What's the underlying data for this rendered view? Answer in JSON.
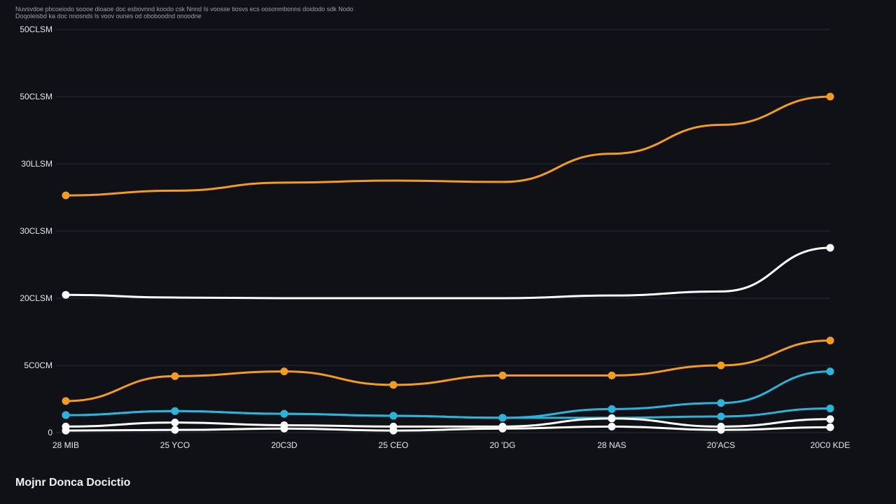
{
  "note": {
    "line1": "Nuvsvdoe pbcoeiodo soooe dioaoe doc esbovnnd koodo csk Nnnd Is voosse tiosvs ecs oosonmbonns doidodo sdk Nodo",
    "line2": "Doqoleisbd ka doc nnosnds ls voov ounes od oboboodnd onoodne"
  },
  "footer": {
    "text": "Mojnr Donca Docictio"
  },
  "colors": {
    "background": "#0f1117",
    "grid": "#262a33",
    "orange": "#f39c1f",
    "cyan": "#2bb3d9",
    "white": "#ffffff"
  },
  "chart_data": {
    "type": "line",
    "title": "",
    "xlabel": "",
    "ylabel": "",
    "y_tick_labels": [
      "0",
      "5C0CM",
      "20CLSM",
      "30CLSM",
      "30LLSM",
      "50CLSM",
      "50CLSM"
    ],
    "ylim": [
      0,
      6
    ],
    "x": [
      "28 MIB",
      "25 YCO",
      "20C3D",
      "25 CEO",
      "20 'DG",
      "28 NAS",
      "20'ACS",
      "20C0 KDE"
    ],
    "grid": true,
    "legend": "none",
    "series": [
      {
        "color": "#f39c1f",
        "markers": "ends",
        "values": [
          3.53,
          3.6,
          3.72,
          3.75,
          3.73,
          4.15,
          4.58,
          5.0
        ]
      },
      {
        "color": "#ffffff",
        "markers": "ends",
        "values": [
          2.05,
          2.01,
          2.0,
          2.0,
          2.0,
          2.04,
          2.1,
          2.75
        ]
      },
      {
        "color": "#f39c1f",
        "markers": "all",
        "values": [
          0.47,
          0.84,
          0.91,
          0.71,
          0.85,
          0.85,
          1.0,
          1.37
        ]
      },
      {
        "color": "#2bb3d9",
        "markers": "all",
        "values": [
          0.26,
          0.32,
          0.28,
          0.25,
          0.22,
          0.35,
          0.44,
          0.91
        ]
      },
      {
        "color": "#2bb3d9",
        "markers": "all",
        "values": [
          0.26,
          0.32,
          0.28,
          0.25,
          0.22,
          0.22,
          0.24,
          0.36
        ]
      },
      {
        "color": "#ffffff",
        "markers": "all",
        "values": [
          0.09,
          0.15,
          0.11,
          0.09,
          0.09,
          0.21,
          0.09,
          0.2
        ]
      },
      {
        "color": "#ffffff",
        "markers": "all",
        "values": [
          0.03,
          0.04,
          0.06,
          0.03,
          0.06,
          0.09,
          0.04,
          0.08
        ]
      }
    ]
  }
}
